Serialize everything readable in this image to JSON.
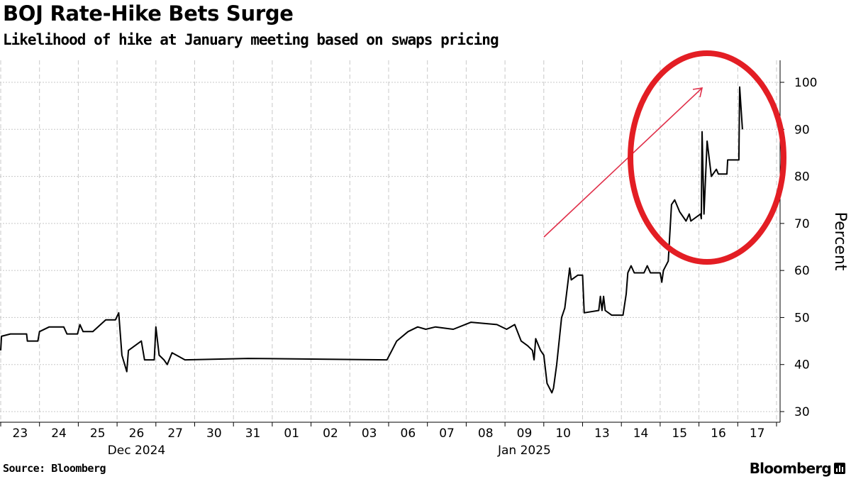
{
  "title": "BOJ Rate-Hike Bets Surge",
  "subtitle": "Likelihood of hike at January meeting based on swaps pricing",
  "source": "Source: Bloomberg",
  "logo": "Bloomberg",
  "chart_data": {
    "type": "line",
    "title": "BOJ Rate-Hike Bets Surge",
    "subtitle": "Likelihood of hike at January meeting based on swaps pricing",
    "ylabel": "Percent",
    "xlabel": "",
    "ylim": [
      30,
      100
    ],
    "yticks": [
      30,
      40,
      50,
      60,
      70,
      80,
      90,
      100
    ],
    "y_axis_side": "right",
    "grid": true,
    "line_color": "#000000",
    "trading_days": [
      "2024-12-23",
      "2024-12-24",
      "2024-12-25",
      "2024-12-26",
      "2024-12-27",
      "2024-12-30",
      "2024-12-31",
      "2025-01-01",
      "2025-01-02",
      "2025-01-03",
      "2025-01-06",
      "2025-01-07",
      "2025-01-08",
      "2025-01-09",
      "2025-01-10",
      "2025-01-13",
      "2025-01-14",
      "2025-01-15",
      "2025-01-16",
      "2025-01-17"
    ],
    "xtick_labels": [
      "23",
      "24",
      "25",
      "26",
      "27",
      "30",
      "31",
      "01",
      "02",
      "03",
      "06",
      "07",
      "08",
      "09",
      "10",
      "13",
      "14",
      "15",
      "16",
      "17"
    ],
    "month_labels": [
      {
        "label": "Dec 2024",
        "under": "26"
      },
      {
        "label": "Jan 2025",
        "under": "09"
      }
    ],
    "points": [
      [
        "2024-12-23 00:00",
        43
      ],
      [
        "2024-12-23 00:30",
        46
      ],
      [
        "2024-12-23 06:00",
        46.5
      ],
      [
        "2024-12-23 16:00",
        46.5
      ],
      [
        "2024-12-23 16:30",
        45
      ],
      [
        "2024-12-23 23:00",
        45
      ],
      [
        "2024-12-24 00:00",
        47
      ],
      [
        "2024-12-24 06:00",
        48
      ],
      [
        "2024-12-24 15:00",
        48
      ],
      [
        "2024-12-24 17:00",
        46.5
      ],
      [
        "2024-12-24 23:30",
        46.5
      ],
      [
        "2024-12-25 01:00",
        48.5
      ],
      [
        "2024-12-25 03:00",
        47
      ],
      [
        "2024-12-25 09:00",
        47
      ],
      [
        "2024-12-25 17:00",
        49.5
      ],
      [
        "2024-12-25 23:00",
        49.5
      ],
      [
        "2024-12-26 01:00",
        51
      ],
      [
        "2024-12-26 03:00",
        42
      ],
      [
        "2024-12-26 06:00",
        38.5
      ],
      [
        "2024-12-26 07:00",
        43
      ],
      [
        "2024-12-26 11:00",
        44
      ],
      [
        "2024-12-26 15:00",
        45
      ],
      [
        "2024-12-26 17:00",
        41
      ],
      [
        "2024-12-26 23:00",
        41
      ],
      [
        "2024-12-27 00:00",
        48
      ],
      [
        "2024-12-27 02:00",
        42
      ],
      [
        "2024-12-27 05:00",
        41
      ],
      [
        "2024-12-27 07:00",
        40
      ],
      [
        "2024-12-27 10:00",
        42.5
      ],
      [
        "2024-12-27 18:00",
        41
      ],
      [
        "2024-12-31 09:00",
        41.3
      ],
      [
        "2025-01-03 23:00",
        41
      ],
      [
        "2025-01-06 02:00",
        43
      ],
      [
        "2025-01-06 05:00",
        45
      ],
      [
        "2025-01-06 12:00",
        47
      ],
      [
        "2025-01-06 18:00",
        48
      ],
      [
        "2025-01-06 23:00",
        47.5
      ],
      [
        "2025-01-07 05:00",
        48
      ],
      [
        "2025-01-07 16:00",
        47.5
      ],
      [
        "2025-01-08 03:00",
        49
      ],
      [
        "2025-01-08 19:00",
        48.5
      ],
      [
        "2025-01-09 01:00",
        47.5
      ],
      [
        "2025-01-09 06:00",
        48.5
      ],
      [
        "2025-01-09 10:00",
        45
      ],
      [
        "2025-01-09 14:00",
        44
      ],
      [
        "2025-01-09 17:00",
        43
      ],
      [
        "2025-01-09 18:00",
        41
      ],
      [
        "2025-01-09 19:00",
        45.5
      ],
      [
        "2025-01-09 22:00",
        43
      ],
      [
        "2025-01-10 00:00",
        42
      ],
      [
        "2025-01-10 02:00",
        36
      ],
      [
        "2025-01-10 05:00",
        34
      ],
      [
        "2025-01-10 06:00",
        35
      ],
      [
        "2025-01-10 08:00",
        40
      ],
      [
        "2025-01-10 11:00",
        50
      ],
      [
        "2025-01-10 13:00",
        52
      ],
      [
        "2025-01-10 16:00",
        60.5
      ],
      [
        "2025-01-10 17:00",
        58
      ],
      [
        "2025-01-10 21:00",
        59
      ],
      [
        "2025-01-13 00:00",
        59
      ],
      [
        "2025-01-13 01:00",
        51
      ],
      [
        "2025-01-13 10:00",
        51.5
      ],
      [
        "2025-01-13 11:00",
        54.5
      ],
      [
        "2025-01-13 12:00",
        51.5
      ],
      [
        "2025-01-13 13:00",
        54.5
      ],
      [
        "2025-01-13 14:00",
        51.5
      ],
      [
        "2025-01-13 18:00",
        50.5
      ],
      [
        "2025-01-14 01:00",
        50.5
      ],
      [
        "2025-01-14 03:00",
        55
      ],
      [
        "2025-01-14 04:00",
        59.5
      ],
      [
        "2025-01-14 06:00",
        61
      ],
      [
        "2025-01-14 08:00",
        59.5
      ],
      [
        "2025-01-14 14:00",
        59.5
      ],
      [
        "2025-01-14 16:00",
        61
      ],
      [
        "2025-01-14 18:00",
        59.5
      ],
      [
        "2025-01-15 00:00",
        59.5
      ],
      [
        "2025-01-15 01:00",
        57.5
      ],
      [
        "2025-01-15 02:00",
        60
      ],
      [
        "2025-01-15 05:00",
        62
      ],
      [
        "2025-01-15 07:00",
        74
      ],
      [
        "2025-01-15 09:00",
        75
      ],
      [
        "2025-01-15 12:00",
        72.5
      ],
      [
        "2025-01-15 16:00",
        70.5
      ],
      [
        "2025-01-15 18:00",
        72
      ],
      [
        "2025-01-15 19:00",
        70.5
      ],
      [
        "2025-01-16 00:58",
        72
      ],
      [
        "2025-01-16 01:26",
        71
      ],
      [
        "2025-01-16 01:55",
        89.5
      ],
      [
        "2025-01-16 03:07",
        72
      ],
      [
        "2025-01-16 05:02",
        87.5
      ],
      [
        "2025-01-16 07:41",
        80
      ],
      [
        "2025-01-16 10:48",
        81.5
      ],
      [
        "2025-01-16 12:00",
        80.5
      ],
      [
        "2025-01-16 17:17",
        80.5
      ],
      [
        "2025-01-16 17:46",
        83.5
      ],
      [
        "2025-01-17 00:43",
        83.5
      ],
      [
        "2025-01-17 01:12",
        99
      ],
      [
        "2025-01-17 02:53",
        90
      ]
    ],
    "annotations": {
      "highlight_color": "#e31e24",
      "arrow_color": "#e0304a",
      "shapes": [
        "ellipse around Jan 15-17 surge",
        "arrow pointing up-right"
      ]
    }
  }
}
